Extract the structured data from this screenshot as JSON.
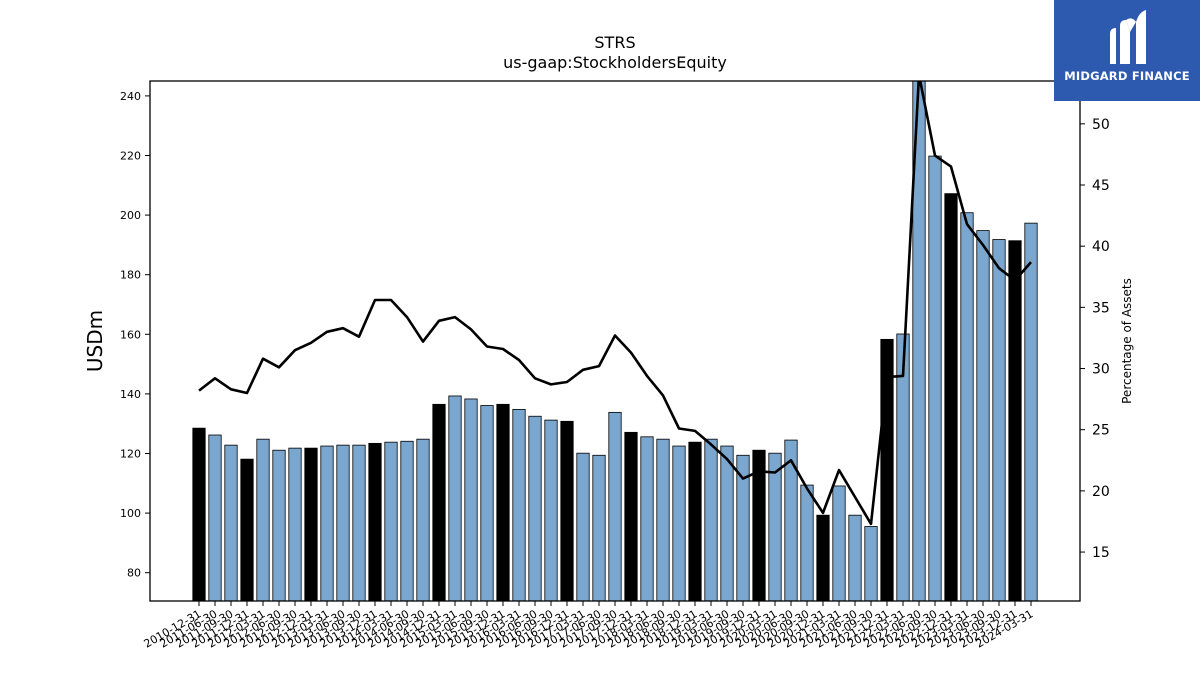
{
  "brand": {
    "name": "MIDGARD FINANCE",
    "logo_icon": "midgard-m-icon",
    "color": "#2d5aae"
  },
  "chart_data": {
    "type": "bar",
    "title": "STRS",
    "subtitle": "us-gaap:StockholdersEquity",
    "ylabel": "USDm",
    "y2label": "Percentage of Assets",
    "ylim": [
      70.5,
      245
    ],
    "y2lim": [
      11,
      53.5
    ],
    "yticks": [
      80,
      100,
      120,
      140,
      160,
      180,
      200,
      220,
      240
    ],
    "y2ticks": [
      15,
      20,
      25,
      30,
      35,
      40,
      45,
      50
    ],
    "grid": false,
    "colors": {
      "annual": "#000000",
      "quarter": "#7ba7cf",
      "line": "#000000"
    },
    "categories": [
      "2010-12-31",
      "2011-06-30",
      "2011-09-30",
      "2011-12-31",
      "2012-03-31",
      "2012-06-30",
      "2012-09-30",
      "2012-12-31",
      "2013-03-31",
      "2013-06-30",
      "2013-09-30",
      "2013-12-31",
      "2014-03-31",
      "2014-06-30",
      "2014-09-30",
      "2014-12-31",
      "2015-03-31",
      "2015-06-30",
      "2015-09-30",
      "2015-12-31",
      "2016-03-31",
      "2016-06-30",
      "2016-09-30",
      "2016-12-31",
      "2017-03-31",
      "2017-06-30",
      "2017-09-30",
      "2017-12-31",
      "2018-03-31",
      "2018-06-30",
      "2018-09-30",
      "2018-12-31",
      "2019-03-31",
      "2019-06-30",
      "2019-09-30",
      "2019-12-31",
      "2020-03-31",
      "2020-06-30",
      "2020-09-30",
      "2020-12-31",
      "2021-03-31",
      "2021-06-30",
      "2021-09-30",
      "2021-12-31",
      "2022-03-31",
      "2022-06-30",
      "2022-09-30",
      "2022-12-31",
      "2023-03-31",
      "2023-06-30",
      "2023-09-30",
      "2023-12-31",
      "2024-03-31"
    ],
    "series": [
      {
        "values": [
          128.5,
          126.2,
          122.8,
          118.1,
          124.8,
          121.1,
          121.8,
          121.8,
          122.5,
          122.8,
          122.8,
          123.4,
          123.8,
          124.1,
          124.8,
          136.5,
          139.3,
          138.3,
          136.1,
          136.5,
          134.8,
          132.5,
          131.2,
          130.8,
          120.1,
          119.4,
          133.8,
          127.1,
          125.6,
          124.8,
          122.5,
          123.8,
          124.8,
          122.5,
          119.4,
          121.1,
          120.1,
          124.5,
          109.4,
          99.3,
          109.1,
          99.3,
          95.5,
          158.3,
          160.1,
          245.5,
          219.8,
          207.2,
          200.8,
          194.8,
          191.8,
          191.4,
          197.3
        ]
      },
      {
        "values": [
          28.2,
          29.2,
          28.3,
          28.0,
          30.8,
          30.1,
          31.5,
          32.1,
          33.0,
          33.3,
          32.6,
          35.6,
          35.6,
          34.2,
          32.2,
          33.9,
          34.2,
          33.2,
          31.8,
          31.6,
          30.7,
          29.2,
          28.7,
          28.9,
          29.9,
          30.2,
          32.7,
          31.3,
          29.4,
          27.8,
          25.1,
          24.9,
          23.8,
          22.6,
          21.0,
          21.6,
          21.5,
          22.5,
          20.2,
          18.2,
          21.7,
          19.5,
          17.3,
          29.3,
          29.4,
          54.0,
          47.4,
          46.5,
          41.8,
          40.1,
          38.2,
          37.2,
          38.7
        ]
      }
    ]
  }
}
